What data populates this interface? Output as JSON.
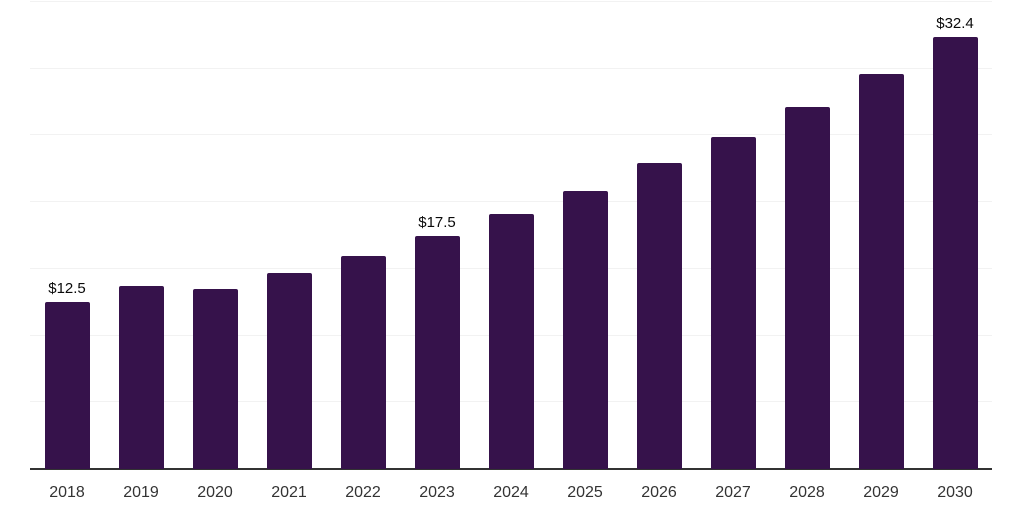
{
  "chart_data": {
    "type": "bar",
    "title": "",
    "xlabel": "",
    "ylabel": "",
    "categories": [
      "2018",
      "2019",
      "2020",
      "2021",
      "2022",
      "2023",
      "2024",
      "2025",
      "2026",
      "2027",
      "2028",
      "2029",
      "2030"
    ],
    "values": [
      12.5,
      13.7,
      13.5,
      14.7,
      16.0,
      17.5,
      19.1,
      20.8,
      22.9,
      24.9,
      27.1,
      29.6,
      32.4
    ],
    "labeled_points": [
      {
        "index": 0,
        "label": "$12.5"
      },
      {
        "index": 5,
        "label": "$17.5"
      },
      {
        "index": 12,
        "label": "$32.4"
      }
    ],
    "ylim": [
      0,
      35
    ],
    "grid_step": 5,
    "grid": true,
    "legend": false,
    "colors": {
      "bar": "#36124b",
      "grid": "#f2f2f2",
      "axis": "#333333",
      "tick_text": "#333333",
      "value_text": "#0a0a0a",
      "background": "#ffffff"
    }
  }
}
